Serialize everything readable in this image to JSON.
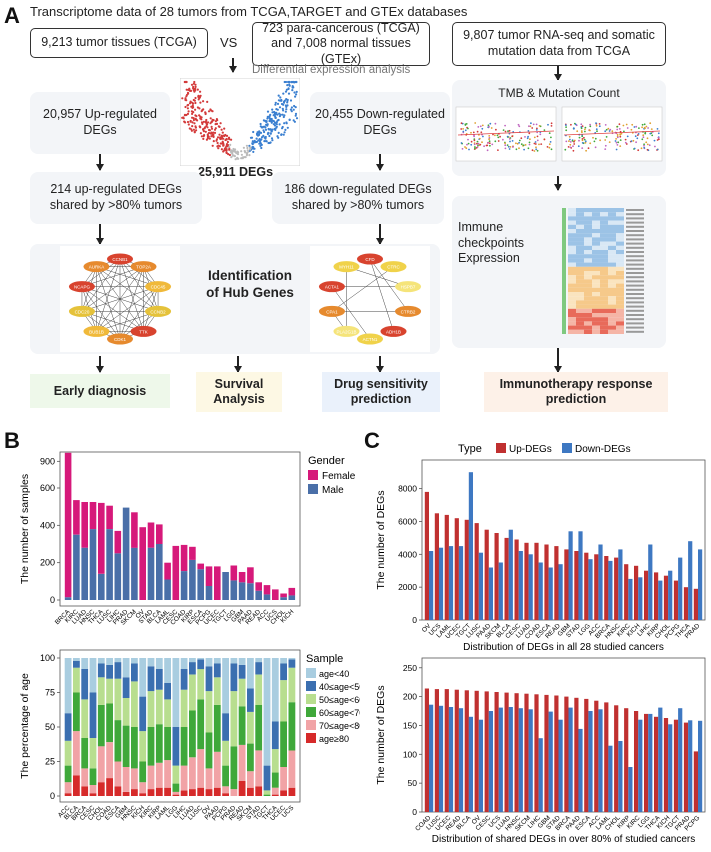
{
  "panel_a": {
    "letter": "A",
    "header": "Transcriptome data of 28 tumors from TCGA,TARGET and GTEx databases",
    "tumor_box": "9,213 tumor tissues (TCGA)",
    "vs_label": "VS",
    "normal_box": "723 para-cancerous (TCGA) and 7,008 normal tissues (GTEx)",
    "diff_label": "Differential expression analysis",
    "mutation_box": "9,807 tumor RNA-seq and somatic mutation data from TCGA",
    "up_box": "20,957 Up-regulated DEGs",
    "deg_total": "25,911 DEGs",
    "down_box": "20,455 Down-regulated DEGs",
    "tmb_label": "TMB & Mutation Count",
    "up_shared": "214 up-regulated DEGs shared by >80% tumors",
    "down_shared": "186 down-regulated DEGs shared by >80% tumors",
    "immune_label": "Immune checkpoints Expression",
    "hub_label": "Identification of Hub Genes",
    "network_up_genes": [
      "CCNB1",
      "TOP2A",
      "CDC45",
      "CCNB2",
      "TTK",
      "CDK1",
      "BUB1B",
      "CDC20",
      "NCAPG",
      "AURKA"
    ],
    "network_down_genes": [
      "CFD",
      "CTRC",
      "HSPB7",
      "CTRB2",
      "ADH1B",
      "ACTN1",
      "PLA2G1B",
      "CPA1",
      "ACTA1",
      "MYH11"
    ],
    "outcomes": {
      "early": "Early diagnosis",
      "survival": "Survival Analysis",
      "drug": "Drug sensitivity prediction",
      "immuno": "Immunotherapy response prediction"
    },
    "colors": {
      "early": "#eef8ea",
      "survival": "#fdf8e4",
      "drug": "#eaf1fb",
      "immuno": "#fdf1e8"
    }
  },
  "panel_b": {
    "letter": "B",
    "chart_data": [
      {
        "type": "bar",
        "subtype": "stacked",
        "title": "",
        "ylabel": "The number of samples",
        "legend_title": "Gender",
        "categories": [
          "BRCA",
          "KIRC",
          "LUAD",
          "HNSC",
          "THCA",
          "LUSC",
          "LIHC",
          "PRAD",
          "SKCM",
          "OV",
          "STAD",
          "BLCA",
          "LAML",
          "CESC",
          "COAD",
          "KIRP",
          "ESCA",
          "PCPG",
          "UCEC",
          "TGCT",
          "LGG",
          "GBM",
          "PAAD",
          "READ",
          "ACC",
          "UCS",
          "CHOL",
          "KICH"
        ],
        "y_ticks": [
          0,
          200,
          400,
          600,
          900
        ],
        "series": [
          {
            "name": "Female",
            "color": "#d6197a",
            "values": [
              943,
              185,
              245,
              145,
              380,
              125,
              120,
              0,
              190,
              390,
              135,
              105,
              90,
              290,
              140,
              70,
              30,
              105,
              180,
              0,
              80,
              55,
              85,
              45,
              50,
              57,
              20,
              40
            ]
          },
          {
            "name": "Male",
            "color": "#4a6fa8",
            "values": [
              15,
              350,
              280,
              380,
              140,
              380,
              250,
              495,
              280,
              0,
              280,
              300,
              110,
              0,
              155,
              215,
              165,
              75,
              0,
              150,
              105,
              95,
              90,
              50,
              30,
              0,
              15,
              25
            ]
          }
        ]
      },
      {
        "type": "bar",
        "subtype": "stacked-percent",
        "ylabel": "The percentage of age",
        "legend_title": "Sample",
        "categories": [
          "ACC",
          "BLCA",
          "BRCA",
          "CESC",
          "CHOL",
          "COAD",
          "ESCA",
          "GBM",
          "HNSC",
          "KICH",
          "KIRC",
          "KIRP",
          "LAML",
          "LGG",
          "LIHC",
          "LUAD",
          "LUSC",
          "OV",
          "PAAD",
          "PCPG",
          "PRAD",
          "READ",
          "SKCM",
          "STAD",
          "TGCT",
          "THCA",
          "UCEC",
          "UCS"
        ],
        "y_ticks": [
          0,
          25,
          50,
          75,
          100
        ],
        "series": [
          {
            "name": "age<40",
            "color": "#a9cde0",
            "values": [
              40,
              2,
              8,
              25,
              4,
              5,
              3,
              14,
              4,
              28,
              6,
              8,
              18,
              50,
              8,
              3,
              1,
              6,
              4,
              40,
              4,
              5,
              22,
              3,
              78,
              46,
              4,
              1
            ]
          },
          {
            "name": "40≤age<50",
            "color": "#3b6fb0",
            "values": [
              20,
              5,
              22,
              33,
              10,
              10,
              12,
              15,
              13,
              25,
              18,
              15,
              12,
              28,
              15,
              9,
              7,
              18,
              10,
              20,
              20,
              10,
              17,
              9,
              18,
              20,
              12,
              6
            ]
          },
          {
            "name": "50≤age<60",
            "color": "#b8de8f",
            "values": [
              18,
              18,
              28,
              22,
              20,
              18,
              30,
              20,
              33,
              22,
              26,
              25,
              20,
              13,
              27,
              26,
              22,
              30,
              20,
              18,
              40,
              20,
              23,
              22,
              3,
              17,
              30,
              25
            ]
          },
          {
            "name": "60≤age<70",
            "color": "#3fa83a",
            "values": [
              12,
              28,
              22,
              12,
              30,
              28,
              30,
              30,
              30,
              15,
              28,
              28,
              24,
              6,
              28,
              34,
              36,
              26,
              34,
              15,
              31,
              28,
              20,
              33,
              1,
              11,
              33,
              35
            ]
          },
          {
            "name": "70≤age<80",
            "color": "#f1a3a6",
            "values": [
              8,
              32,
              13,
              6,
              26,
              26,
              18,
              18,
              15,
              8,
              17,
              18,
              20,
              2,
              18,
              23,
              28,
              15,
              26,
              5,
              5,
              26,
              12,
              26,
              0,
              5,
              17,
              27
            ]
          },
          {
            "name": "age≥80",
            "color": "#d62a2a",
            "values": [
              2,
              15,
              7,
              2,
              10,
              13,
              7,
              3,
              5,
              2,
              5,
              6,
              6,
              1,
              4,
              5,
              6,
              5,
              6,
              2,
              0,
              11,
              6,
              7,
              0,
              1,
              4,
              6
            ]
          }
        ]
      }
    ]
  },
  "panel_c": {
    "letter": "C",
    "legend_title": "Type",
    "chart_data": [
      {
        "type": "bar",
        "subtype": "grouped",
        "ylabel": "The number of DEGs",
        "xlabel": "Distribution of DEGs in all 28 studied cancers",
        "categories": [
          "OV",
          "UCS",
          "LAML",
          "UCEC",
          "TGCT",
          "LUSC",
          "PAAD",
          "SKCM",
          "BLCA",
          "CESC",
          "LUAD",
          "COAD",
          "ESCA",
          "READ",
          "GBM",
          "STAD",
          "LGG",
          "ACC",
          "BRCA",
          "HNSC",
          "KIRC",
          "KICH",
          "LIHC",
          "KIRP",
          "CHOL",
          "PCPG",
          "THCA",
          "PRAD"
        ],
        "y_ticks": [
          0,
          2000,
          4000,
          6000,
          8000
        ],
        "ylim": [
          0,
          9500
        ],
        "series": [
          {
            "name": "Up-DEGs",
            "color": "#c03030",
            "values": [
              7800,
              6500,
              6400,
              6200,
              6100,
              5900,
              5500,
              5300,
              5000,
              4900,
              4700,
              4700,
              4600,
              4500,
              4300,
              4200,
              4100,
              4000,
              3900,
              3800,
              3400,
              3300,
              3000,
              2900,
              2700,
              2400,
              2000,
              1900
            ]
          },
          {
            "name": "Down-DEGs",
            "color": "#3e78c2",
            "values": [
              4200,
              4400,
              4500,
              4500,
              9000,
              4100,
              3200,
              3500,
              5500,
              4200,
              4000,
              3500,
              3200,
              3400,
              5400,
              5400,
              3700,
              4600,
              3600,
              4300,
              2500,
              2600,
              4600,
              2400,
              3000,
              3800,
              4800,
              4300
            ]
          }
        ]
      },
      {
        "type": "bar",
        "subtype": "grouped",
        "ylabel": "The number of DEGs",
        "xlabel": "Distribution of shared DEGs in over 80% of studied cancers",
        "categories": [
          "COAD",
          "LUSC",
          "UCEC",
          "READ",
          "BLCA",
          "OV",
          "CESC",
          "UCS",
          "LUAD",
          "HNSC",
          "SKCM",
          "LIHC",
          "GBM",
          "STAD",
          "BRCA",
          "PAAD",
          "ESCA",
          "ACC",
          "LAML",
          "CHOL",
          "KIRP",
          "KIRC",
          "LGG",
          "THCA",
          "KICH",
          "TGCT",
          "PRAD",
          "PCPG"
        ],
        "y_ticks": [
          0,
          50,
          100,
          150,
          200,
          250
        ],
        "ylim": [
          0,
          260
        ],
        "series": [
          {
            "name": "Up-DEGs",
            "color": "#c03030",
            "values": [
              214,
              213,
              213,
              212,
              211,
              210,
              209,
              208,
              207,
              206,
              205,
              204,
              203,
              202,
              200,
              198,
              196,
              193,
              190,
              185,
              180,
              175,
              170,
              165,
              163,
              160,
              155,
              105
            ]
          },
          {
            "name": "Down-DEGs",
            "color": "#3e78c2",
            "values": [
              186,
              184,
              182,
              180,
              165,
              160,
              175,
              181,
              182,
              180,
              178,
              128,
              174,
              160,
              181,
              144,
              175,
              178,
              115,
              123,
              78,
              160,
              170,
              181,
              152,
              180,
              159,
              158
            ]
          }
        ]
      }
    ]
  }
}
